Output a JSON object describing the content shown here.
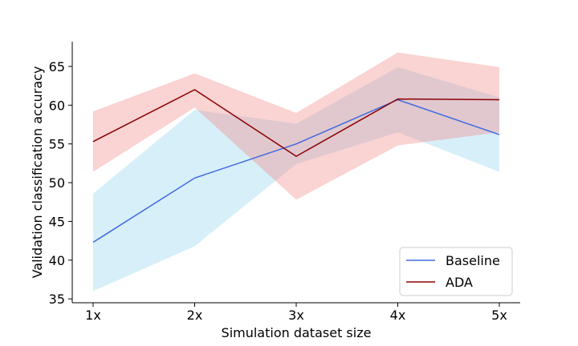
{
  "chart_data": {
    "type": "line",
    "categories": [
      "1x",
      "2x",
      "3x",
      "4x",
      "5x"
    ],
    "xlabel": "Simulation dataset size",
    "ylabel": "Validation classification accuracy",
    "ylim": [
      34.5,
      68.2
    ],
    "yticks": [
      35,
      40,
      45,
      50,
      55,
      60,
      65
    ],
    "legend_position": "lower-right",
    "series": [
      {
        "name": "Baseline",
        "values": [
          42.3,
          50.6,
          55.0,
          60.7,
          56.2
        ],
        "lower": [
          36.0,
          41.8,
          52.4,
          56.5,
          51.4
        ],
        "upper": [
          48.6,
          59.4,
          57.6,
          64.9,
          61.0
        ],
        "line_color": "#4169e1",
        "band_color": "#87ceeb"
      },
      {
        "name": "ADA",
        "values": [
          55.3,
          62.0,
          53.4,
          60.8,
          60.7
        ],
        "lower": [
          51.4,
          59.7,
          47.8,
          54.8,
          56.5
        ],
        "upper": [
          59.2,
          64.1,
          59.0,
          66.8,
          64.9
        ],
        "line_color": "#8b0000",
        "band_color": "#f08080"
      }
    ]
  }
}
